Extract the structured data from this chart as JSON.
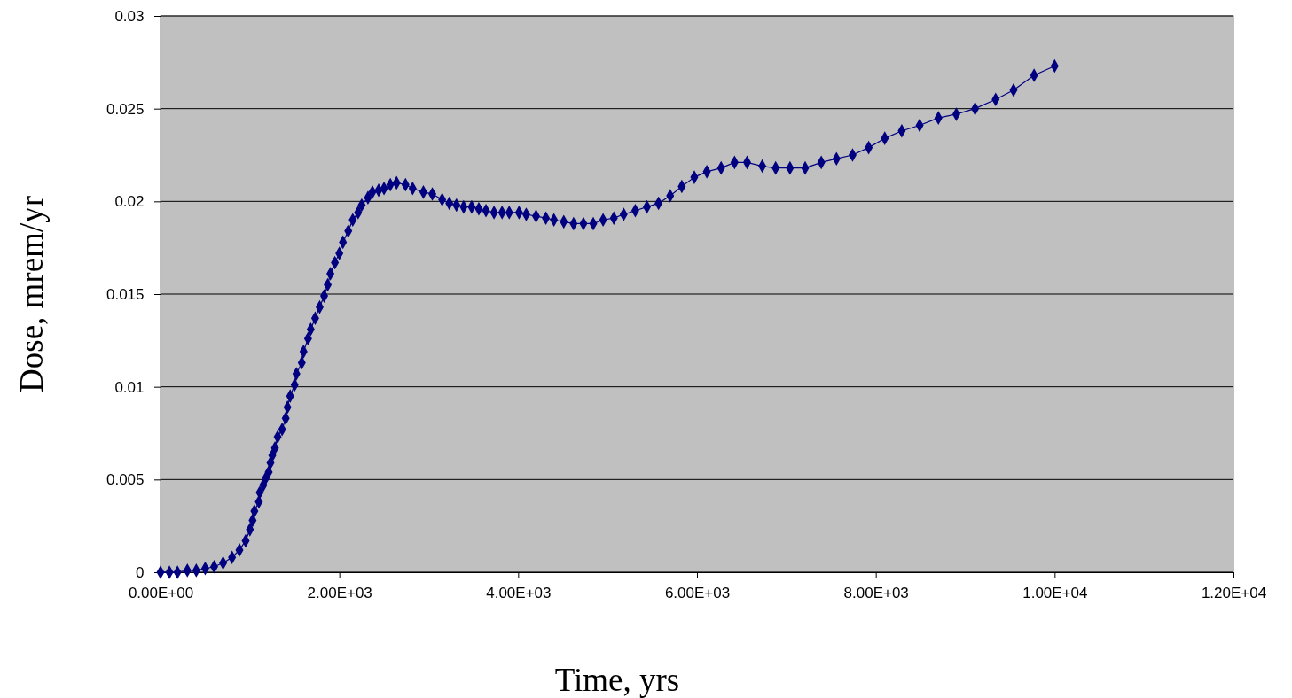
{
  "chart_data": {
    "type": "line",
    "xlabel": "Time, yrs",
    "ylabel": "Dose, mrem/yr",
    "xlim": [
      0,
      12000
    ],
    "xticks": [
      {
        "value": 0,
        "label": "0.00E+00"
      },
      {
        "value": 2000,
        "label": "2.00E+03"
      },
      {
        "value": 4000,
        "label": "4.00E+03"
      },
      {
        "value": 6000,
        "label": "6.00E+03"
      },
      {
        "value": 8000,
        "label": "8.00E+03"
      },
      {
        "value": 10000,
        "label": "1.00E+04"
      },
      {
        "value": 12000,
        "label": "1.20E+04"
      }
    ],
    "ylim": [
      0,
      0.03
    ],
    "yticks": [
      0,
      0.005,
      0.01,
      0.015,
      0.02,
      0.025,
      0.03
    ],
    "grid": "y",
    "marker": "diamond",
    "line_style": "solid",
    "series": [
      {
        "color": "#000080",
        "x": [
          0,
          100,
          190,
          300,
          400,
          500,
          600,
          700,
          800,
          883,
          952,
          1000,
          1030,
          1050,
          1100,
          1110,
          1150,
          1180,
          1210,
          1230,
          1250,
          1280,
          1310,
          1360,
          1400,
          1420,
          1450,
          1500,
          1520,
          1580,
          1600,
          1650,
          1680,
          1730,
          1780,
          1830,
          1870,
          1900,
          1950,
          2000,
          2040,
          2100,
          2150,
          2210,
          2250,
          2320,
          2370,
          2440,
          2500,
          2570,
          2640,
          2740,
          2820,
          2940,
          3040,
          3150,
          3230,
          3310,
          3390,
          3480,
          3560,
          3640,
          3730,
          3820,
          3900,
          4010,
          4090,
          4200,
          4310,
          4400,
          4510,
          4620,
          4730,
          4840,
          4950,
          5070,
          5180,
          5310,
          5440,
          5570,
          5700,
          5830,
          5970,
          6110,
          6270,
          6420,
          6560,
          6730,
          6880,
          7040,
          7210,
          7390,
          7560,
          7740,
          7920,
          8100,
          8290,
          8490,
          8700,
          8900,
          9110,
          9340,
          9540,
          9770,
          10000
        ],
        "values": [
          0,
          0,
          0,
          0.0001,
          0.0001,
          0.0002,
          0.0003,
          0.0005,
          0.0008,
          0.0012,
          0.0017,
          0.0023,
          0.0028,
          0.0033,
          0.0038,
          0.0043,
          0.0047,
          0.0051,
          0.0054,
          0.0059,
          0.0063,
          0.0067,
          0.0073,
          0.0077,
          0.0083,
          0.0089,
          0.0095,
          0.0101,
          0.0107,
          0.0113,
          0.0119,
          0.0126,
          0.0131,
          0.0137,
          0.0143,
          0.0149,
          0.0155,
          0.0161,
          0.0167,
          0.0172,
          0.0178,
          0.0184,
          0.019,
          0.0194,
          0.0198,
          0.0202,
          0.0205,
          0.0206,
          0.0207,
          0.0209,
          0.021,
          0.0209,
          0.0207,
          0.0205,
          0.0204,
          0.0201,
          0.0199,
          0.0198,
          0.0197,
          0.0197,
          0.0196,
          0.0195,
          0.0194,
          0.0194,
          0.0194,
          0.0194,
          0.0193,
          0.0192,
          0.0191,
          0.019,
          0.0189,
          0.0188,
          0.0188,
          0.0188,
          0.019,
          0.0191,
          0.0193,
          0.0195,
          0.0197,
          0.0199,
          0.0203,
          0.0208,
          0.0213,
          0.0216,
          0.0218,
          0.0221,
          0.0221,
          0.0219,
          0.0218,
          0.0218,
          0.0218,
          0.0221,
          0.0223,
          0.0225,
          0.0229,
          0.0234,
          0.0238,
          0.0241,
          0.0245,
          0.0247,
          0.025,
          0.0255,
          0.026,
          0.0268,
          0.0273
        ]
      }
    ]
  }
}
